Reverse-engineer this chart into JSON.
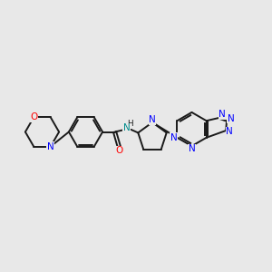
{
  "bg_color": "#e8e8e8",
  "bond_color": "#1a1a1a",
  "N_color": "#0000ff",
  "O_color": "#ff0000",
  "NH_color": "#008b8b",
  "lw": 1.4,
  "fs": 7.5,
  "fig_width": 3.0,
  "fig_height": 3.0,
  "dpi": 100,
  "xlim": [
    0,
    10
  ],
  "ylim": [
    0,
    10
  ]
}
